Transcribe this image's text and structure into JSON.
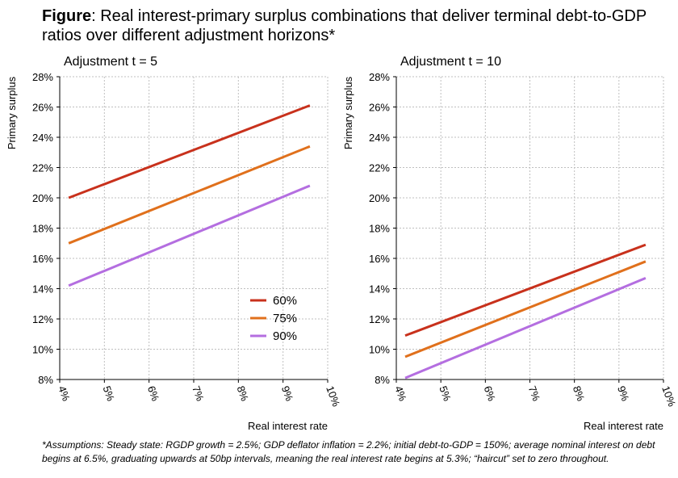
{
  "title": {
    "bold": "Figure",
    "rest": ": Real interest-primary surplus combinations that deliver terminal debt-to-GDP ratios over different adjustment horizons*"
  },
  "footnote": "*Assumptions: Steady state: RGDP growth = 2.5%; GDP deflator inflation = 2.2%; initial debt-to-GDP = 150%; average nominal interest on debt begins at 6.5%, graduating upwards at 50bp intervals, meaning the real interest rate begins at 5.3%; “haircut” set to zero throughout.",
  "colors": {
    "s60": "#c8311c",
    "s75": "#e0701c",
    "s90": "#b46ee0",
    "grid": "#bfbfbf",
    "axis": "#000000"
  },
  "chart_data": [
    {
      "type": "line",
      "panel_title": "Adjustment t = 5",
      "xlabel": "Real interest rate",
      "ylabel": "Primary surplus",
      "xlim": [
        4,
        10
      ],
      "ylim": [
        8,
        28
      ],
      "x_ticks": [
        "4%",
        "5%",
        "6%",
        "7%",
        "8%",
        "9%",
        "10%"
      ],
      "y_ticks": [
        "8%",
        "10%",
        "12%",
        "14%",
        "16%",
        "18%",
        "20%",
        "22%",
        "24%",
        "26%",
        "28%"
      ],
      "legend": [
        "60%",
        "75%",
        "90%"
      ],
      "legend_position": "lower-right",
      "series": [
        {
          "name": "60%",
          "color": "#c8311c",
          "x": [
            4.2,
            9.6
          ],
          "y": [
            20.0,
            26.1
          ]
        },
        {
          "name": "75%",
          "color": "#e0701c",
          "x": [
            4.2,
            9.6
          ],
          "y": [
            17.0,
            23.4
          ]
        },
        {
          "name": "90%",
          "color": "#b46ee0",
          "x": [
            4.2,
            9.6
          ],
          "y": [
            14.2,
            20.8
          ]
        }
      ]
    },
    {
      "type": "line",
      "panel_title": "Adjustment t = 10",
      "xlabel": "Real interest rate",
      "ylabel": "Primary surplus",
      "xlim": [
        4,
        10
      ],
      "ylim": [
        8,
        28
      ],
      "x_ticks": [
        "4%",
        "5%",
        "6%",
        "7%",
        "8%",
        "9%",
        "10%"
      ],
      "y_ticks": [
        "8%",
        "10%",
        "12%",
        "14%",
        "16%",
        "18%",
        "20%",
        "22%",
        "24%",
        "26%",
        "28%"
      ],
      "series": [
        {
          "name": "60%",
          "color": "#c8311c",
          "x": [
            4.2,
            9.6
          ],
          "y": [
            10.9,
            16.9
          ]
        },
        {
          "name": "75%",
          "color": "#e0701c",
          "x": [
            4.2,
            9.6
          ],
          "y": [
            9.5,
            15.8
          ]
        },
        {
          "name": "90%",
          "color": "#b46ee0",
          "x": [
            4.2,
            9.6
          ],
          "y": [
            8.1,
            14.7
          ]
        }
      ]
    }
  ]
}
